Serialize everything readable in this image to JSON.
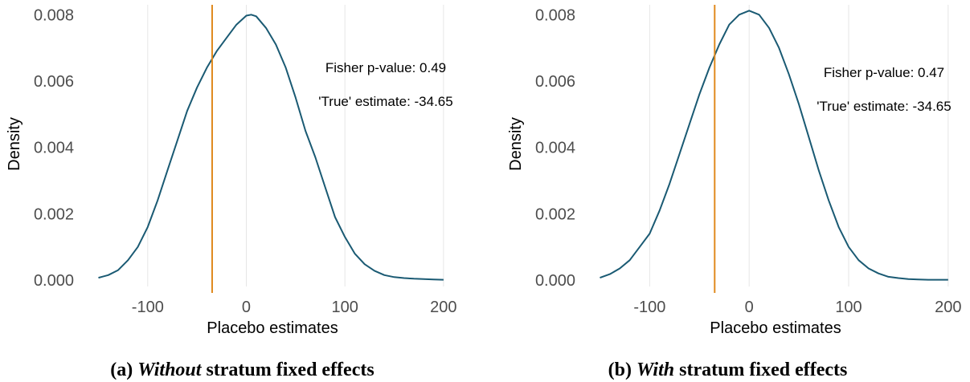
{
  "panels": [
    {
      "caption_label": "(a)",
      "caption_emph": "Without",
      "caption_rest": "stratum fixed effects",
      "annotation_fisher": "Fisher p-value: 0.49",
      "annotation_true": "'True' estimate: -34.65"
    },
    {
      "caption_label": "(b)",
      "caption_emph": "With",
      "caption_rest": "stratum fixed effects",
      "annotation_fisher": "Fisher p-value: 0.47",
      "annotation_true": "'True' estimate: -34.65"
    }
  ],
  "colors": {
    "density_line": "#1a5a73",
    "true_estimate_line": "#e08a1e",
    "grid": "#e6e6e6"
  },
  "chart_data": [
    {
      "type": "line",
      "xlabel": "Placebo estimates",
      "ylabel": "Density",
      "xlim": [
        -152,
        205
      ],
      "ylim": [
        0,
        0.0082
      ],
      "x_ticks": [
        -100,
        0,
        100,
        200
      ],
      "x_tick_labels": [
        "-100",
        "0",
        "100",
        "200"
      ],
      "y_ticks": [
        0,
        0.002,
        0.004,
        0.006,
        0.008
      ],
      "y_tick_labels": [
        "0.000",
        "0.002",
        "0.004",
        "0.006",
        "0.008"
      ],
      "grid": "vertical",
      "vline": -34.65,
      "series": [
        {
          "x": [
            -150,
            -140,
            -130,
            -120,
            -110,
            -100,
            -90,
            -80,
            -70,
            -60,
            -50,
            -40,
            -30,
            -20,
            -10,
            0,
            5,
            10,
            20,
            30,
            40,
            50,
            60,
            70,
            80,
            90,
            100,
            110,
            120,
            130,
            140,
            150,
            160,
            170,
            180,
            190,
            200
          ],
          "y": [
            7e-05,
            0.00015,
            0.0003,
            0.0006,
            0.001,
            0.0016,
            0.0024,
            0.0033,
            0.0042,
            0.0051,
            0.0058,
            0.0064,
            0.0069,
            0.0073,
            0.0077,
            0.00797,
            0.008,
            0.00795,
            0.0076,
            0.0071,
            0.0064,
            0.0055,
            0.0045,
            0.0037,
            0.0028,
            0.0019,
            0.0013,
            0.0008,
            0.00048,
            0.00028,
            0.00015,
            9e-05,
            6e-05,
            4e-05,
            3e-05,
            2e-05,
            1e-05
          ]
        }
      ]
    },
    {
      "type": "line",
      "xlabel": "Placebo estimates",
      "ylabel": "Density",
      "xlim": [
        -152,
        205
      ],
      "ylim": [
        0,
        0.0082
      ],
      "x_ticks": [
        -100,
        0,
        100,
        200
      ],
      "x_tick_labels": [
        "-100",
        "0",
        "100",
        "200"
      ],
      "y_ticks": [
        0,
        0.002,
        0.004,
        0.006,
        0.008
      ],
      "y_tick_labels": [
        "0.000",
        "0.002",
        "0.004",
        "0.006",
        "0.008"
      ],
      "grid": "vertical",
      "vline": -34.65,
      "series": [
        {
          "x": [
            -150,
            -140,
            -130,
            -120,
            -110,
            -100,
            -90,
            -80,
            -70,
            -60,
            -50,
            -40,
            -30,
            -20,
            -10,
            0,
            10,
            20,
            30,
            40,
            50,
            60,
            70,
            80,
            90,
            100,
            110,
            120,
            130,
            140,
            150,
            160,
            170,
            180,
            190,
            200
          ],
          "y": [
            7e-05,
            0.00018,
            0.00035,
            0.0006,
            0.001,
            0.0014,
            0.0021,
            0.0029,
            0.0038,
            0.0047,
            0.0056,
            0.0064,
            0.0071,
            0.0077,
            0.008,
            0.00812,
            0.008,
            0.0076,
            0.007,
            0.0062,
            0.0053,
            0.0043,
            0.0033,
            0.0024,
            0.0016,
            0.001,
            0.0006,
            0.00035,
            0.0002,
            0.0001,
            6e-05,
            3e-05,
            2e-05,
            1e-05,
            1e-05,
            1e-05
          ]
        }
      ]
    }
  ]
}
